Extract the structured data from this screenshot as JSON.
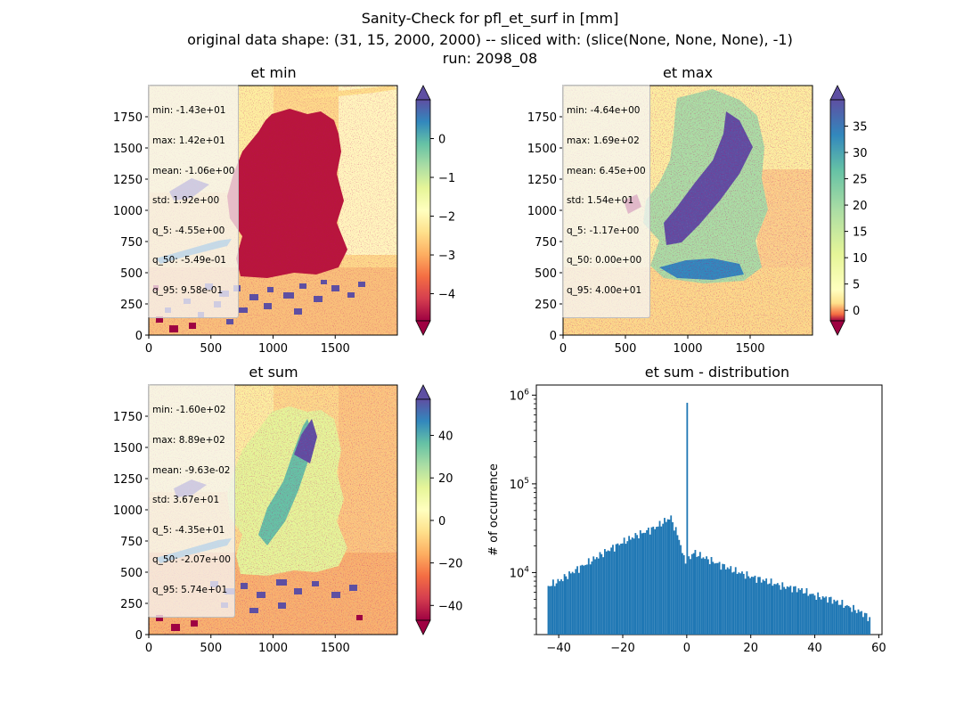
{
  "figure": {
    "title_line1": "Sanity-Check for pfl_et_surf in [mm]",
    "title_line2": "original data shape: (31, 15, 2000, 2000) -- sliced with: (slice(None, None, None), -1)",
    "title_line3": "run: 2098_08"
  },
  "panels": [
    {
      "title": "et min",
      "stats": [
        "min: -1.43e+01",
        "max: 1.42e+01",
        "mean: -1.06e+00",
        "std: 1.92e+00",
        "q_5: -4.55e+00",
        "q_50: -5.49e-01",
        "q_95: 9.58e-01"
      ],
      "x_ticks": [
        "0",
        "500",
        "1000",
        "1500"
      ],
      "y_ticks": [
        "0",
        "250",
        "500",
        "750",
        "1000",
        "1250",
        "1500",
        "1750"
      ],
      "colorbar_ticks": [
        "0",
        "−1",
        "−2",
        "−3",
        "−4"
      ],
      "colorbar_values": [
        0,
        -1,
        -2,
        -3,
        -4
      ],
      "colorbar_range": [
        -4.7,
        1.0
      ],
      "colormap": "Spectral",
      "colorbar_extend": "both"
    },
    {
      "title": "et max",
      "stats": [
        "min: -4.64e+00",
        "max: 1.69e+02",
        "mean: 6.45e+00",
        "std: 1.54e+01",
        "q_5: -1.17e+00",
        "q_50: 0.00e+00",
        "q_95: 4.00e+01"
      ],
      "x_ticks": [
        "0",
        "500",
        "1000",
        "1500"
      ],
      "y_ticks": [
        "0",
        "250",
        "500",
        "750",
        "1000",
        "1250",
        "1500",
        "1750"
      ],
      "colorbar_ticks": [
        "35",
        "30",
        "25",
        "20",
        "15",
        "10",
        "5",
        "0"
      ],
      "colorbar_values": [
        35,
        30,
        25,
        20,
        15,
        10,
        5,
        0
      ],
      "colorbar_range": [
        -2.0,
        40.0
      ],
      "colormap": "Spectral",
      "colorbar_extend": "both"
    },
    {
      "title": "et sum",
      "stats": [
        "min: -1.60e+02",
        "max: 8.89e+02",
        "mean: -9.63e-02",
        "std: 3.67e+01",
        "q_5: -4.35e+01",
        "q_50: -2.07e+00",
        "q_95: 5.74e+01"
      ],
      "x_ticks": [
        "0",
        "500",
        "1000",
        "1500"
      ],
      "y_ticks": [
        "0",
        "250",
        "500",
        "750",
        "1000",
        "1250",
        "1500",
        "1750"
      ],
      "colorbar_ticks": [
        "40",
        "20",
        "0",
        "−20",
        "−40"
      ],
      "colorbar_values": [
        40,
        20,
        0,
        -20,
        -40
      ],
      "colorbar_range": [
        -47.0,
        57.0
      ],
      "colormap": "Spectral",
      "colorbar_extend": "both"
    }
  ],
  "chart_data": {
    "type": "bar",
    "title": "et sum - distribution",
    "xlabel": "",
    "ylabel": "# of occurrence",
    "yscale": "log",
    "xlim": [
      -47,
      61
    ],
    "ylim": [
      2000,
      1300000
    ],
    "x_ticks": [
      "−40",
      "−20",
      "0",
      "20",
      "40",
      "60"
    ],
    "x_tick_values": [
      -40,
      -20,
      0,
      20,
      40,
      60
    ],
    "y_ticks": [
      "10^4",
      "10^5",
      "10^6"
    ],
    "y_tick_values": [
      10000,
      100000,
      1000000
    ],
    "bar_color": "#1f77b4",
    "bin_range": [
      -43.5,
      57.4
    ],
    "bin_count": 200,
    "profile_x": [
      -43.5,
      -40,
      -35,
      -30,
      -25,
      -20,
      -15,
      -10,
      -5,
      -2,
      -1.2,
      0,
      1.2,
      2,
      5,
      10,
      15,
      20,
      25,
      30,
      35,
      40,
      45,
      50,
      55,
      57.4
    ],
    "profile_y": [
      7000,
      8000,
      10500,
      13500,
      17500,
      22000,
      27000,
      32000,
      42000,
      22000,
      15000,
      14000,
      15000,
      17000,
      15000,
      12500,
      10500,
      9000,
      8000,
      7000,
      6500,
      5500,
      5000,
      4200,
      3500,
      3000
    ],
    "spike": {
      "x": 0,
      "value": 820000
    }
  }
}
